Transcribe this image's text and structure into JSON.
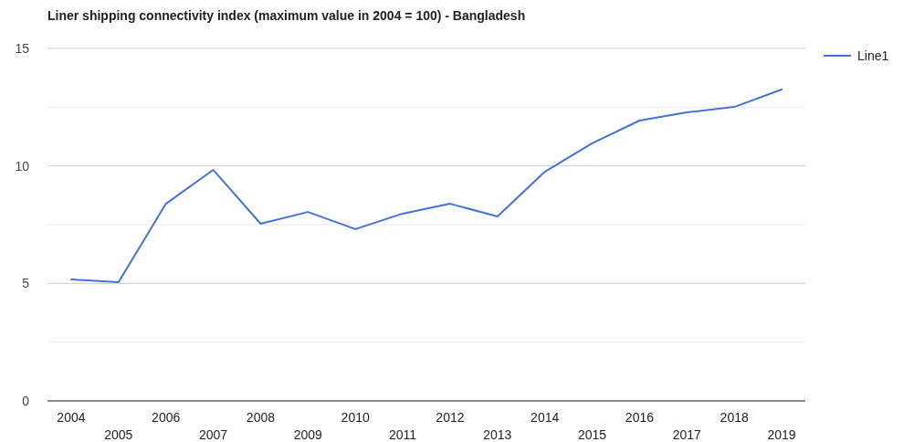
{
  "chart_data": {
    "type": "line",
    "title": "Liner shipping connectivity index (maximum value in 2004 = 100) - Bangladesh",
    "categories": [
      "2004",
      "2005",
      "2006",
      "2007",
      "2008",
      "2009",
      "2010",
      "2011",
      "2012",
      "2013",
      "2014",
      "2015",
      "2016",
      "2017",
      "2018",
      "2019"
    ],
    "series": [
      {
        "name": "Line1",
        "color": "#4472d8",
        "values": [
          5.17,
          5.05,
          8.39,
          9.83,
          7.54,
          8.04,
          7.31,
          7.97,
          8.39,
          7.85,
          9.75,
          10.96,
          11.93,
          12.28,
          12.51,
          13.25
        ]
      }
    ],
    "ylim": [
      0,
      15
    ],
    "yticks": [
      0,
      {
        "value": 2.5,
        "label": null
      },
      5,
      {
        "value": 7.5,
        "label": null
      },
      10,
      {
        "value": 12.5,
        "label": null
      },
      15
    ],
    "grid": "y",
    "legend": "top right",
    "marker": "none",
    "line_style": "solid"
  }
}
